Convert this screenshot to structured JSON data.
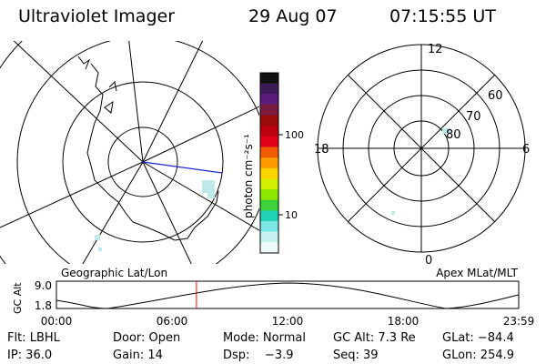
{
  "header": {
    "title": "Ultraviolet Imager",
    "date": "29 Aug 07",
    "time": "07:15:55 UT"
  },
  "colorbar": {
    "label": "photon cm⁻²s⁻¹",
    "ticks": [
      "100",
      "10"
    ],
    "scale": "log",
    "colors": [
      "#111111",
      "#3d1a5a",
      "#5a1e7a",
      "#7a1a3c",
      "#9a0c0c",
      "#c00010",
      "#e00018",
      "#f35b00",
      "#ff9a00",
      "#ffd400",
      "#d4f000",
      "#8ce600",
      "#3cd23c",
      "#21d2b4",
      "#7fe6e6",
      "#c9f0f0",
      "#eefafa"
    ]
  },
  "left_panel": {
    "caption": "Geographic Lat/Lon"
  },
  "right_panel": {
    "caption": "Apex MLat/MLT",
    "mlt_labels": {
      "top": "12",
      "left": "18",
      "right": "6",
      "bottom": "0"
    },
    "mlat_labels": [
      "60",
      "70",
      "80"
    ]
  },
  "altitude_plot": {
    "ylabel": "GC Alt",
    "yticks": [
      "9.0",
      "1.8"
    ],
    "xticks": [
      "00:00",
      "06:00",
      "12:00",
      "18:00",
      "23:59"
    ],
    "current_time_marker_hours": 7.27,
    "marker_color": "#ff0000"
  },
  "footer": {
    "row1": {
      "filter": "Flt: LBHL",
      "door": "Door: Open",
      "mode": "Mode: Normal",
      "gc_alt": "GC Alt: 7.3 Re",
      "glat": "GLat: −84.4"
    },
    "row2": {
      "ip": "IP: 36.0",
      "gain": "Gain: 14",
      "dsp": "Dsp:    −3.9",
      "seq": "Seq: 39",
      "glon": "GLon: 254.9"
    }
  }
}
